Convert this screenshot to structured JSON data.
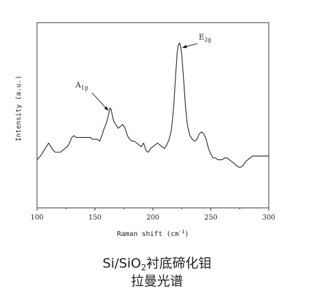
{
  "chart_data": {
    "type": "line",
    "title_line1_pre": "Si/SiO",
    "title_line1_sub": "2",
    "title_line1_post": "衬底碲化钼",
    "title_line2": "拉曼光谱",
    "xlabel_pre": "Raman shift (cm",
    "xlabel_sup": "-1",
    "xlabel_post": ")",
    "ylabel": "Intensity (a.u.)",
    "xlim": [
      100,
      300
    ],
    "ylim": [
      0,
      1
    ],
    "x_ticks": [
      "100",
      "150",
      "200",
      "250",
      "300"
    ],
    "y_ticks_shown": false,
    "grid": false,
    "annotations": [
      {
        "main": "A",
        "sub": "1g",
        "x": 164,
        "y": 0.51
      },
      {
        "main": "E",
        "sub": "2g",
        "x": 223,
        "y": 0.85
      }
    ],
    "series": [
      {
        "x": [
          100,
          103,
          106,
          108,
          110,
          112,
          114,
          116,
          118,
          120,
          122,
          124,
          126,
          128,
          130,
          132,
          134,
          136,
          138,
          140,
          142,
          144,
          146,
          148,
          150,
          152,
          154,
          156,
          158,
          160,
          162,
          163,
          164,
          165,
          166,
          167,
          168,
          170,
          172,
          174,
          176,
          178,
          180,
          182,
          184,
          186,
          188,
          190,
          192,
          194,
          196,
          198,
          200,
          202,
          204,
          206,
          208,
          210,
          212,
          214,
          216,
          218,
          219,
          220,
          221,
          222,
          223,
          224,
          225,
          226,
          227,
          228,
          229,
          230,
          232,
          234,
          236,
          238,
          240,
          242,
          244,
          246,
          248,
          250,
          252,
          254,
          256,
          258,
          260,
          262,
          264,
          266,
          268,
          270,
          272,
          274,
          276,
          278,
          280,
          282,
          284,
          286,
          288,
          290,
          292,
          294,
          296,
          298,
          300
        ],
        "y": [
          0.26,
          0.28,
          0.31,
          0.33,
          0.35,
          0.33,
          0.31,
          0.3,
          0.3,
          0.3,
          0.31,
          0.32,
          0.33,
          0.35,
          0.38,
          0.39,
          0.38,
          0.38,
          0.38,
          0.38,
          0.38,
          0.38,
          0.38,
          0.37,
          0.37,
          0.37,
          0.36,
          0.39,
          0.43,
          0.46,
          0.51,
          0.54,
          0.53,
          0.5,
          0.47,
          0.46,
          0.45,
          0.43,
          0.44,
          0.45,
          0.43,
          0.39,
          0.37,
          0.36,
          0.36,
          0.35,
          0.34,
          0.33,
          0.35,
          0.31,
          0.3,
          0.32,
          0.33,
          0.34,
          0.35,
          0.34,
          0.33,
          0.32,
          0.34,
          0.37,
          0.42,
          0.55,
          0.65,
          0.75,
          0.84,
          0.88,
          0.89,
          0.87,
          0.82,
          0.74,
          0.65,
          0.56,
          0.49,
          0.44,
          0.39,
          0.37,
          0.36,
          0.37,
          0.4,
          0.41,
          0.4,
          0.37,
          0.32,
          0.29,
          0.27,
          0.27,
          0.26,
          0.26,
          0.26,
          0.27,
          0.27,
          0.26,
          0.25,
          0.24,
          0.23,
          0.22,
          0.22,
          0.23,
          0.25,
          0.26,
          0.27,
          0.28,
          0.28,
          0.28,
          0.28,
          0.28,
          0.28,
          0.28,
          0.28
        ]
      }
    ]
  }
}
